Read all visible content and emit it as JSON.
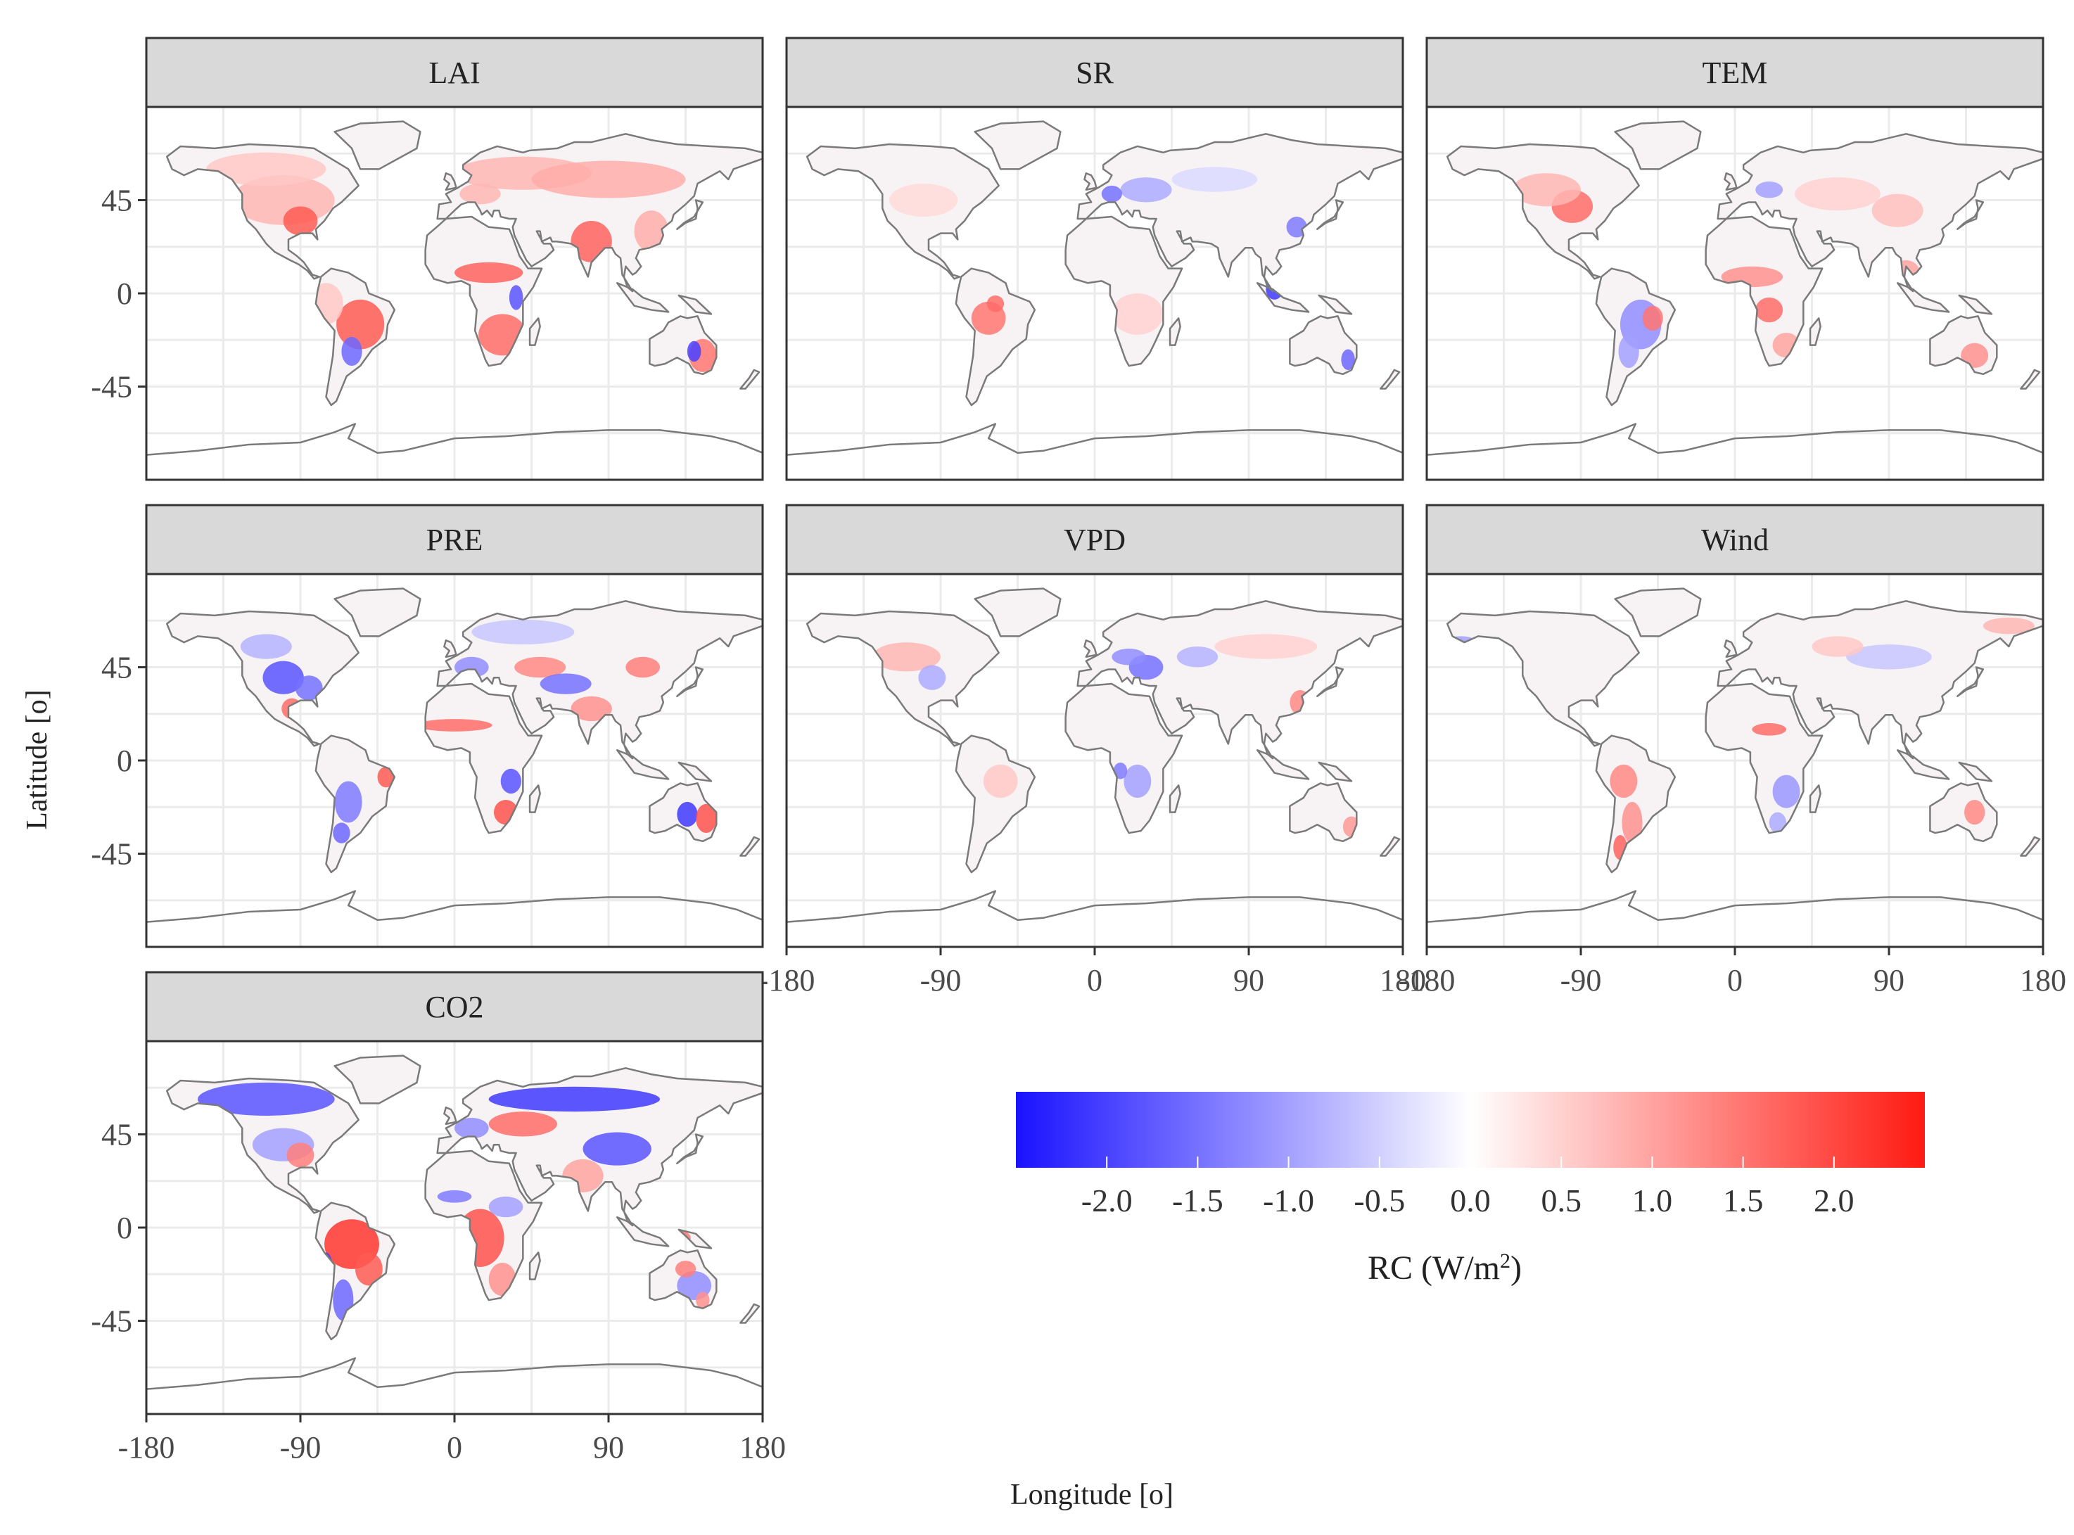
{
  "chart_data": {
    "type": "heatmap",
    "kind": "faceted global maps",
    "panels": [
      {
        "id": "lai",
        "title": "LAI"
      },
      {
        "id": "sr",
        "title": "SR"
      },
      {
        "id": "tem",
        "title": "TEM"
      },
      {
        "id": "pre",
        "title": "PRE"
      },
      {
        "id": "vpd",
        "title": "VPD"
      },
      {
        "id": "wind",
        "title": "Wind"
      },
      {
        "id": "co2",
        "title": "CO2"
      }
    ],
    "xlabel": "Longitude [o]",
    "ylabel": "Latitude [o]",
    "xlim": [
      -180,
      180
    ],
    "ylim": [
      -90,
      90
    ],
    "x_ticks": [
      "-180",
      "-90",
      "0",
      "90",
      "180"
    ],
    "y_ticks": [
      "45",
      "0",
      "-45"
    ],
    "x_tick_values": [
      -180,
      -90,
      0,
      90,
      180
    ],
    "y_tick_values": [
      45,
      0,
      -45
    ],
    "colorbar": {
      "label_main": "RC (W/m",
      "label_sup": "2",
      "label_end": ")",
      "ticks": [
        "-2.0",
        "-1.5",
        "-1.0",
        "-0.5",
        "0.0",
        "0.5",
        "1.0",
        "1.5",
        "2.0"
      ],
      "tick_values": [
        -2.0,
        -1.5,
        -1.0,
        -0.5,
        0.0,
        0.5,
        1.0,
        1.5,
        2.0
      ],
      "range": [
        -2.5,
        2.5
      ],
      "low_color": "#1a12ff",
      "mid_color": "#ffffff",
      "high_color": "#ff1a12"
    },
    "colors": {
      "strip_fill": "#d9d9d9",
      "frame": "#333333",
      "coast": "#7a7a7a",
      "grid": "#ebebeb"
    }
  }
}
